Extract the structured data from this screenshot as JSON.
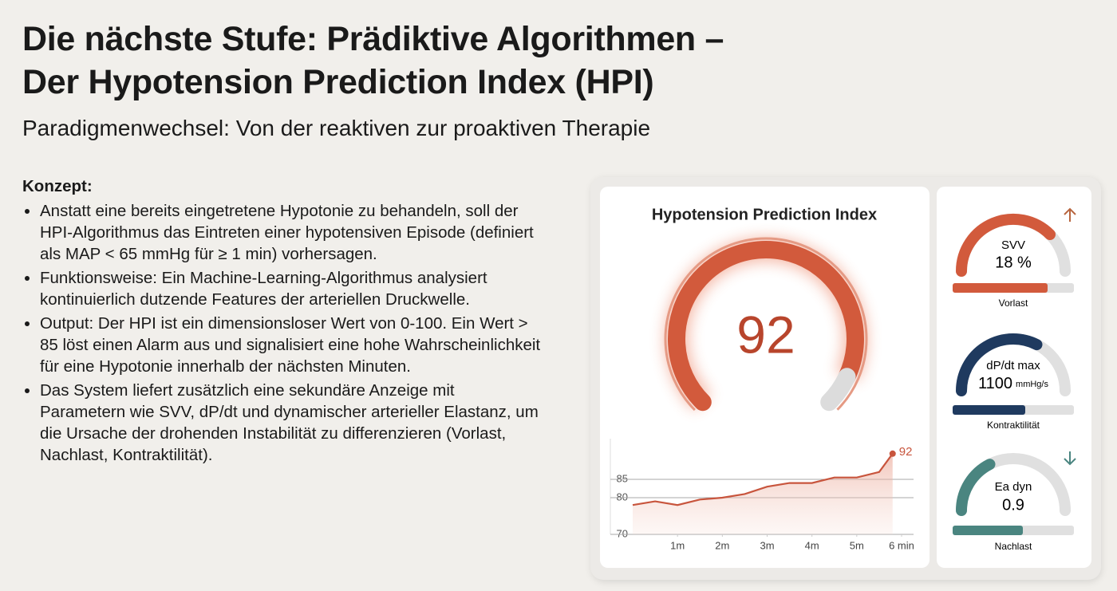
{
  "header": {
    "title": [
      "Die nächste Stufe: Prädiktive Algorithmen –",
      "Der Hypotension Prediction Index (HPI)"
    ],
    "subtitle": "Paradigmenwechsel: Von der reaktiven zur proaktiven Therapie"
  },
  "concept": {
    "heading": "Konzept:",
    "bullets": [
      "Anstatt eine bereits eingetretene Hypotonie zu behandeln, soll der HPI-Algorithmus das Eintreten einer hypotensiven Episode (definiert als MAP < 65 mmHg für ≥ 1 min) vorhersagen.",
      "Funktionsweise: Ein Machine-Learning-Algorithmus analysiert kontinuierlich dutzende Features der arteriellen Druckwelle.",
      "Output: Der HPI ist ein dimensionsloser Wert von 0-100. Ein Wert > 85 löst einen Alarm aus und signalisiert eine hohe Wahrscheinlichkeit für eine Hypotonie innerhalb der nächsten Minuten.",
      "Das System liefert zusätzlich eine sekundäre Anzeige mit Parametern wie SVV, dP/dt und dynamischer arterieller Elastanz, um die Ursache der drohenden Instabilität zu differenzieren (Vorlast, Nachlast, Kontraktilität)."
    ]
  },
  "hpi": {
    "title": "Hypotension Prediction Index",
    "value": "92"
  },
  "chart_data": {
    "type": "line",
    "x": [
      0,
      0.5,
      1,
      1.5,
      2,
      2.5,
      3,
      3.5,
      4,
      4.5,
      5,
      5.5,
      5.8
    ],
    "values": [
      78,
      79,
      78,
      79.5,
      80,
      81,
      83,
      84,
      84,
      85.5,
      85.5,
      87,
      92
    ],
    "color": "#c8553d",
    "xlim": [
      0,
      6
    ],
    "xticks": [
      {
        "value": 1,
        "label": "1m"
      },
      {
        "value": 2,
        "label": "2m"
      },
      {
        "value": 3,
        "label": "3m"
      },
      {
        "value": 4,
        "label": "4m"
      },
      {
        "value": 5,
        "label": "5m"
      },
      {
        "value": 6,
        "label": "6 min"
      }
    ],
    "ylim": [
      70,
      95
    ],
    "yticks": [
      70,
      80,
      85
    ],
    "grid": true
  },
  "parameters": [
    {
      "name": "SVV",
      "value": "18 %",
      "category": "Vorlast"
    },
    {
      "name": "dP/dt max",
      "value": "1100",
      "unit": "mmHg/s",
      "category": "Kontraktilität"
    },
    {
      "name": "Ea dyn",
      "value": "0.9",
      "category": "Nachlast"
    }
  ]
}
